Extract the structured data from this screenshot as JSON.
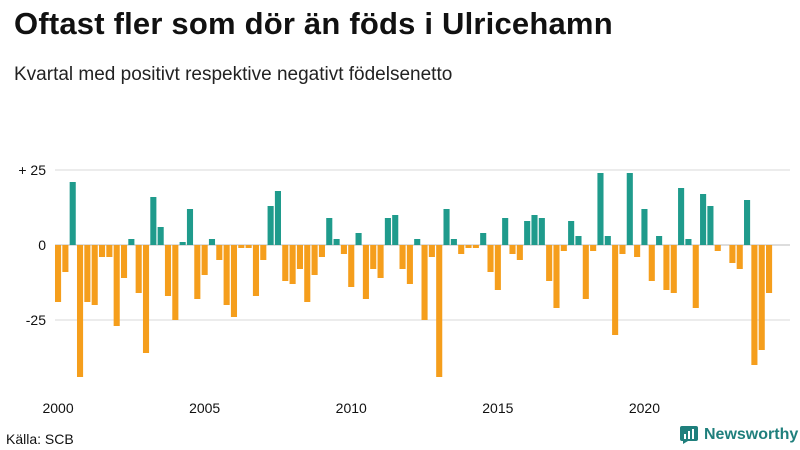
{
  "title": "Oftast fler som dör än föds i Ulricehamn",
  "subtitle": "Kvartal med positivt respektive negativt födelsenetto",
  "source": "Källa: SCB",
  "brand": "Newsworthy",
  "colors": {
    "positive": "#1f9b8c",
    "negative": "#f59e1c",
    "grid": "#d9d9d9",
    "brand": "#1f7f7c"
  },
  "chart_data": {
    "type": "bar",
    "title": "Oftast fler som dör än föds i Ulricehamn",
    "subtitle": "Kvartal med positivt respektive negativt födelsenetto",
    "xlabel": "",
    "ylabel": "",
    "ylim": [
      -45,
      25
    ],
    "yticks": [
      {
        "value": 25,
        "label": "+ 25"
      },
      {
        "value": 0,
        "label": "0"
      },
      {
        "value": -25,
        "label": "-25"
      }
    ],
    "xticks": [
      {
        "year": 2000,
        "label": "2000"
      },
      {
        "year": 2005,
        "label": "2005"
      },
      {
        "year": 2010,
        "label": "2010"
      },
      {
        "year": 2015,
        "label": "2015"
      },
      {
        "year": 2020,
        "label": "2020"
      }
    ],
    "start_year": 2000,
    "start_quarter": 1,
    "values": [
      -19,
      -9,
      21,
      -44,
      -19,
      -20,
      -4,
      -4,
      -27,
      -11,
      2,
      -16,
      -36,
      16,
      6,
      -17,
      -25,
      1,
      12,
      -18,
      -10,
      2,
      -5,
      -20,
      -24,
      -1,
      -1,
      -17,
      -5,
      13,
      18,
      -12,
      -13,
      -8,
      -19,
      -10,
      -4,
      9,
      2,
      -3,
      -14,
      4,
      -18,
      -8,
      -11,
      9,
      10,
      -8,
      -13,
      2,
      -25,
      -4,
      -44,
      12,
      2,
      -3,
      -1,
      -1,
      4,
      -9,
      -15,
      9,
      -3,
      -5,
      8,
      10,
      9,
      -12,
      -21,
      -2,
      8,
      3,
      -18,
      -2,
      24,
      3,
      -30,
      -3,
      24,
      -4,
      12,
      -12,
      3,
      -15,
      -16,
      19,
      2,
      -21,
      17,
      13,
      -2,
      0,
      -6,
      -8,
      15,
      -40,
      -35,
      -16
    ]
  }
}
